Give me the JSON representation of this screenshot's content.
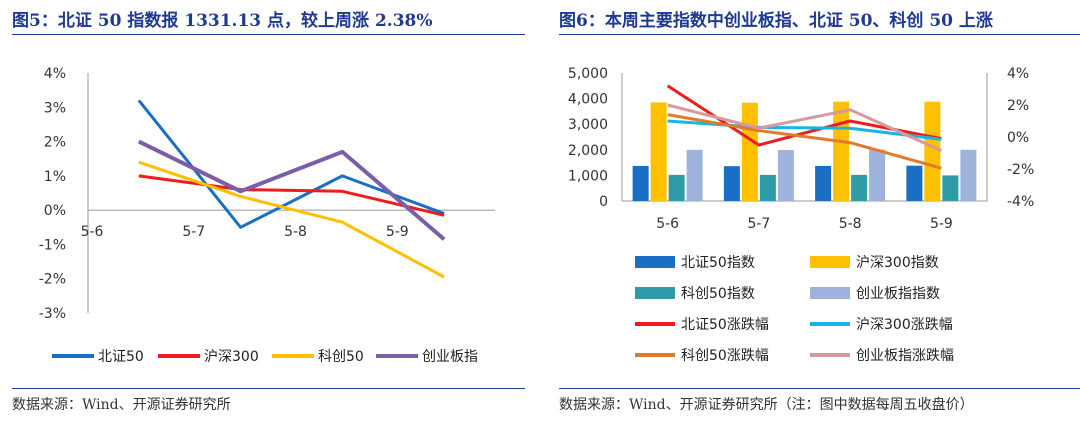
{
  "figure5": {
    "title": "图5：北证 50 指数报 1331.13 点，较上周涨 2.38%",
    "source": "数据来源：Wind、开源证券研究所",
    "chart_data": {
      "type": "line",
      "categories": [
        "5-6",
        "5-7",
        "5-8",
        "5-9"
      ],
      "y_ticks": [
        "4%",
        "3%",
        "2%",
        "1%",
        "0%",
        "-1%",
        "-2%",
        "-3%"
      ],
      "ylim": [
        -3,
        4
      ],
      "legend_position": "bottom",
      "series": [
        {
          "name": "北证50",
          "color": "#1a6fc4",
          "values": [
            3.2,
            -0.5,
            1.0,
            -0.1
          ]
        },
        {
          "name": "沪深300",
          "color": "#ee1c1c",
          "values": [
            1.0,
            0.6,
            0.55,
            -0.15
          ]
        },
        {
          "name": "科创50",
          "color": "#ffc000",
          "values": [
            1.4,
            0.4,
            -0.35,
            -1.95
          ]
        },
        {
          "name": "创业板指",
          "color": "#7b5ea7",
          "values": [
            2.0,
            0.55,
            1.7,
            -0.85
          ]
        }
      ]
    }
  },
  "figure6": {
    "title": "图6：本周主要指数中创业板指、北证 50、科创 50 上涨",
    "source": "数据来源：Wind、开源证券研究所（注：图中数据每周五收盘价）",
    "chart_data": {
      "type": "bar",
      "categories": [
        "5-6",
        "5-7",
        "5-8",
        "5-9"
      ],
      "y_ticks_left": [
        "5,000",
        "4,000",
        "3,000",
        "2,000",
        "1,000",
        "0"
      ],
      "y_ticks_right": [
        "4%",
        "2%",
        "0%",
        "-2%",
        "-4%"
      ],
      "ylim_left": [
        0,
        5000
      ],
      "ylim_right": [
        -4,
        4
      ],
      "legend_position": "bottom",
      "bar_series": [
        {
          "name": "北证50指数",
          "color": "#1a6fc4",
          "values": [
            1370,
            1360,
            1370,
            1380
          ]
        },
        {
          "name": "沪深300指数",
          "color": "#ffc000",
          "values": [
            3850,
            3840,
            3880,
            3880
          ]
        },
        {
          "name": "科创50指数",
          "color": "#2e9ca6",
          "values": [
            1020,
            1020,
            1020,
            1000
          ]
        },
        {
          "name": "创业板指指数",
          "color": "#9eb3dc",
          "values": [
            2000,
            1990,
            2010,
            2000
          ]
        }
      ],
      "line_series": [
        {
          "name": "北证50涨跌幅",
          "color": "#ee1c1c",
          "values": [
            3.2,
            -0.5,
            1.0,
            -0.1
          ]
        },
        {
          "name": "沪深300涨跌幅",
          "color": "#19b4e6",
          "values": [
            1.0,
            0.6,
            0.55,
            -0.15
          ]
        },
        {
          "name": "科创50涨跌幅",
          "color": "#e07b2a",
          "values": [
            1.4,
            0.4,
            -0.35,
            -1.95
          ]
        },
        {
          "name": "创业板指涨跌幅",
          "color": "#d49a9e",
          "values": [
            2.0,
            0.55,
            1.7,
            -0.85
          ]
        }
      ]
    }
  }
}
